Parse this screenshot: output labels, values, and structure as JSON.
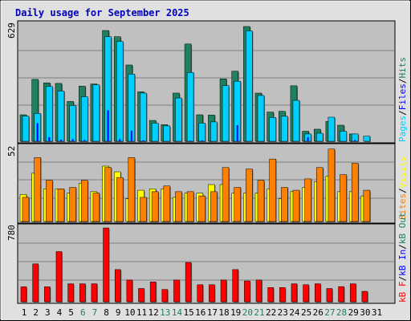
{
  "title": "Daily usage for September 2025",
  "colors": {
    "background": "#e0e0e0",
    "panel": "#c0c0c0",
    "pages": "#00cfff",
    "files": "#0000ff",
    "hits": "#1e8060",
    "visits": "#ffff00",
    "sites": "#ff8000",
    "kbf": "#ff0000",
    "kbin": "#0000ff",
    "kbout": "#1e8060",
    "weekday": "#000000",
    "weekend": "#1e8060"
  },
  "chart_data": [
    {
      "type": "bar",
      "name": "hits-pages-files",
      "ymax_label": "629",
      "ylim": [
        0,
        629
      ],
      "legend": [
        "Pages",
        "/",
        "Files",
        "/",
        "Hits"
      ],
      "categories": [
        "1",
        "2",
        "3",
        "4",
        "5",
        "6",
        "7",
        "8",
        "9",
        "10",
        "11",
        "12",
        "13",
        "14",
        "15",
        "16",
        "17",
        "18",
        "19",
        "20",
        "21",
        "22",
        "23",
        "24",
        "25",
        "26",
        "27",
        "28",
        "29",
        "30",
        "31"
      ],
      "series": [
        {
          "name": "Hits",
          "color": "#1e8060",
          "values": [
            145,
            339,
            320,
            317,
            218,
            302,
            314,
            607,
            573,
            418,
            271,
            114,
            91,
            264,
            533,
            145,
            144,
            342,
            384,
            629,
            264,
            160,
            164,
            304,
            55,
            66,
            109,
            88,
            40,
            0,
            0
          ]
        },
        {
          "name": "Pages",
          "color": "#00cfff",
          "values": [
            138,
            152,
            300,
            275,
            196,
            244,
            309,
            573,
            547,
            368,
            264,
            99,
            84,
            237,
            377,
            99,
            106,
            305,
            329,
            605,
            251,
            130,
            137,
            224,
            40,
            44,
            132,
            55,
            40,
            28,
            0
          ]
        },
        {
          "name": "Files",
          "color": "#0000ff",
          "values": [
            0,
            99,
            22,
            9,
            11,
            7,
            0,
            169,
            11,
            58,
            5,
            0,
            0,
            0,
            3,
            5,
            0,
            0,
            88,
            0,
            0,
            0,
            0,
            0,
            22,
            0,
            0,
            0,
            7,
            0,
            0
          ]
        }
      ]
    },
    {
      "type": "bar",
      "name": "visits-sites",
      "ymax_label": "52",
      "ylim": [
        0,
        52
      ],
      "legend": [
        "Visits",
        "/",
        "Sites"
      ],
      "categories": [
        "1",
        "2",
        "3",
        "4",
        "5",
        "6",
        "7",
        "8",
        "9",
        "10",
        "11",
        "12",
        "13",
        "14",
        "15",
        "16",
        "17",
        "18",
        "19",
        "20",
        "21",
        "22",
        "23",
        "24",
        "25",
        "26",
        "27",
        "28",
        "29",
        "30",
        "31"
      ],
      "series": [
        {
          "name": "Visits",
          "color": "#ffff00",
          "values": [
            19,
            34,
            23,
            23,
            20,
            27,
            21,
            39,
            35,
            16,
            22,
            23,
            23,
            17,
            20,
            20,
            26,
            26,
            20,
            20,
            20,
            23,
            16,
            21,
            24,
            28,
            32,
            21,
            21,
            18,
            0
          ]
        },
        {
          "name": "Sites",
          "color": "#ff8000",
          "values": [
            17,
            45,
            29,
            23,
            24,
            29,
            20,
            38,
            31,
            45,
            17,
            21,
            25,
            21,
            21,
            18,
            21,
            38,
            24,
            37,
            29,
            44,
            24,
            22,
            30,
            38,
            51,
            33,
            41,
            22,
            0
          ]
        }
      ]
    },
    {
      "type": "bar",
      "name": "kbytes",
      "ymax_label": "780",
      "ylim": [
        0,
        780
      ],
      "legend": [
        "kB F",
        "/",
        "kB In",
        "/",
        "kB Out"
      ],
      "categories": [
        "1",
        "2",
        "3",
        "4",
        "5",
        "6",
        "7",
        "8",
        "9",
        "10",
        "11",
        "12",
        "13",
        "14",
        "15",
        "16",
        "17",
        "18",
        "19",
        "20",
        "21",
        "22",
        "23",
        "24",
        "25",
        "26",
        "27",
        "28",
        "29",
        "30",
        "31"
      ],
      "series": [
        {
          "name": "kB F",
          "color": "#ff0000",
          "values": [
            158,
            400,
            158,
            530,
            190,
            190,
            190,
            780,
            340,
            230,
            140,
            210,
            130,
            230,
            415,
            180,
            180,
            230,
            340,
            220,
            230,
            150,
            150,
            190,
            180,
            190,
            140,
            160,
            190,
            110,
            0
          ]
        }
      ]
    }
  ],
  "x_labels": [
    {
      "text": "1",
      "weekend": false
    },
    {
      "text": "2",
      "weekend": false
    },
    {
      "text": "3",
      "weekend": false
    },
    {
      "text": "4",
      "weekend": false
    },
    {
      "text": "5",
      "weekend": false
    },
    {
      "text": "6",
      "weekend": true
    },
    {
      "text": "7",
      "weekend": true
    },
    {
      "text": "8",
      "weekend": false
    },
    {
      "text": "9",
      "weekend": false
    },
    {
      "text": "10",
      "weekend": false
    },
    {
      "text": "11",
      "weekend": false
    },
    {
      "text": "12",
      "weekend": false
    },
    {
      "text": "13",
      "weekend": true
    },
    {
      "text": "14",
      "weekend": true
    },
    {
      "text": "15",
      "weekend": false
    },
    {
      "text": "16",
      "weekend": false
    },
    {
      "text": "17",
      "weekend": false
    },
    {
      "text": "18",
      "weekend": false
    },
    {
      "text": "19",
      "weekend": false
    },
    {
      "text": "20",
      "weekend": true
    },
    {
      "text": "21",
      "weekend": true
    },
    {
      "text": "22",
      "weekend": false
    },
    {
      "text": "23",
      "weekend": false
    },
    {
      "text": "24",
      "weekend": false
    },
    {
      "text": "25",
      "weekend": false
    },
    {
      "text": "26",
      "weekend": false
    },
    {
      "text": "27",
      "weekend": true
    },
    {
      "text": "28",
      "weekend": true
    },
    {
      "text": "29",
      "weekend": false
    },
    {
      "text": "30",
      "weekend": false
    },
    {
      "text": "31",
      "weekend": false
    }
  ]
}
